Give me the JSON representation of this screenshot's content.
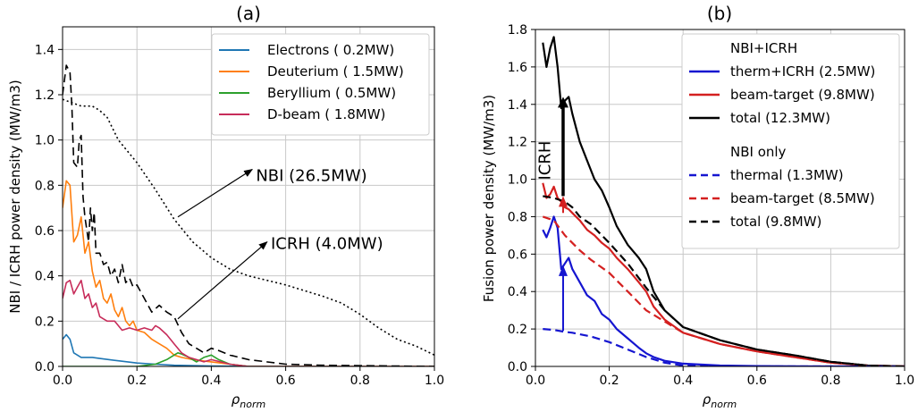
{
  "chart_data": [
    {
      "type": "line",
      "panel": "(a)",
      "xlabel": "ρnorm",
      "xlabel_base": "ρ",
      "xlabel_sub": "norm",
      "ylabel": "NBI / ICRH power density (MW/m3)",
      "xlim": [
        0,
        1.0
      ],
      "ylim": [
        0,
        1.5
      ],
      "xticks": [
        0.0,
        0.2,
        0.4,
        0.6,
        0.8,
        1.0
      ],
      "xtick_labels": [
        "0.0",
        "0.2",
        "0.4",
        "0.6",
        "0.8",
        "1.0"
      ],
      "yticks": [
        0.0,
        0.2,
        0.4,
        0.6,
        0.8,
        1.0,
        1.2,
        1.4
      ],
      "ytick_labels": [
        "0.0",
        "0.2",
        "0.4",
        "0.6",
        "0.8",
        "1.0",
        "1.2",
        "1.4"
      ],
      "grid": true,
      "legend_position": "top-right",
      "series": [
        {
          "name": "Electrons  ( 0.2MW)",
          "color": "#1f77b4",
          "dash": "solid",
          "in_legend": true,
          "x": [
            0.0,
            0.01,
            0.02,
            0.03,
            0.05,
            0.08,
            0.1,
            0.15,
            0.2,
            0.25,
            0.3,
            0.4,
            0.5,
            1.0
          ],
          "y": [
            0.12,
            0.14,
            0.12,
            0.06,
            0.04,
            0.04,
            0.035,
            0.025,
            0.015,
            0.01,
            0.005,
            0.002,
            0.0,
            0.0
          ]
        },
        {
          "name": "Deuterium  ( 1.5MW)",
          "color": "#ff7f0e",
          "dash": "solid",
          "in_legend": true,
          "x": [
            0.0,
            0.01,
            0.02,
            0.03,
            0.04,
            0.05,
            0.06,
            0.07,
            0.08,
            0.09,
            0.1,
            0.11,
            0.12,
            0.13,
            0.14,
            0.15,
            0.16,
            0.17,
            0.18,
            0.19,
            0.2,
            0.22,
            0.24,
            0.26,
            0.28,
            0.3,
            0.32,
            0.35,
            0.4,
            0.45,
            0.5,
            1.0
          ],
          "y": [
            0.7,
            0.82,
            0.8,
            0.55,
            0.58,
            0.66,
            0.5,
            0.55,
            0.42,
            0.35,
            0.38,
            0.3,
            0.28,
            0.32,
            0.25,
            0.22,
            0.26,
            0.2,
            0.18,
            0.2,
            0.16,
            0.15,
            0.12,
            0.1,
            0.08,
            0.05,
            0.04,
            0.03,
            0.02,
            0.01,
            0.0,
            0.0
          ]
        },
        {
          "name": "Beryllium  ( 0.5MW)",
          "color": "#2ca02c",
          "dash": "solid",
          "in_legend": true,
          "x": [
            0.0,
            0.2,
            0.25,
            0.28,
            0.3,
            0.31,
            0.32,
            0.34,
            0.36,
            0.38,
            0.4,
            0.42,
            0.45,
            0.5,
            1.0
          ],
          "y": [
            0.0,
            0.0,
            0.01,
            0.03,
            0.05,
            0.06,
            0.055,
            0.04,
            0.02,
            0.04,
            0.05,
            0.03,
            0.01,
            0.0,
            0.0
          ]
        },
        {
          "name": "D-beam   ( 1.8MW)",
          "color": "#c72c5a",
          "dash": "solid",
          "in_legend": true,
          "x": [
            0.0,
            0.01,
            0.02,
            0.03,
            0.04,
            0.05,
            0.06,
            0.07,
            0.08,
            0.09,
            0.1,
            0.12,
            0.14,
            0.16,
            0.18,
            0.2,
            0.22,
            0.24,
            0.25,
            0.26,
            0.28,
            0.3,
            0.32,
            0.34,
            0.36,
            0.38,
            0.4,
            0.45,
            0.5,
            1.0
          ],
          "y": [
            0.3,
            0.37,
            0.38,
            0.32,
            0.35,
            0.38,
            0.3,
            0.32,
            0.26,
            0.28,
            0.22,
            0.2,
            0.2,
            0.16,
            0.17,
            0.16,
            0.17,
            0.16,
            0.18,
            0.17,
            0.14,
            0.1,
            0.06,
            0.04,
            0.03,
            0.02,
            0.03,
            0.01,
            0.0,
            0.0
          ]
        },
        {
          "name": "NBI",
          "color": "#000000",
          "dash": "dashed",
          "in_legend": false,
          "x": [
            0.0,
            0.01,
            0.02,
            0.025,
            0.03,
            0.04,
            0.045,
            0.05,
            0.055,
            0.06,
            0.07,
            0.075,
            0.08,
            0.085,
            0.09,
            0.1,
            0.11,
            0.12,
            0.13,
            0.14,
            0.15,
            0.16,
            0.17,
            0.18,
            0.19,
            0.2,
            0.22,
            0.24,
            0.26,
            0.28,
            0.3,
            0.32,
            0.34,
            0.36,
            0.38,
            0.4,
            0.42,
            0.45,
            0.5,
            0.6,
            0.7,
            1.0
          ],
          "y": [
            1.2,
            1.33,
            1.3,
            1.15,
            0.9,
            0.88,
            1.0,
            1.02,
            0.75,
            0.66,
            0.55,
            0.7,
            0.6,
            0.68,
            0.5,
            0.5,
            0.45,
            0.46,
            0.4,
            0.43,
            0.37,
            0.45,
            0.37,
            0.39,
            0.35,
            0.36,
            0.3,
            0.24,
            0.27,
            0.24,
            0.22,
            0.15,
            0.1,
            0.08,
            0.06,
            0.08,
            0.07,
            0.05,
            0.03,
            0.01,
            0.005,
            0.0
          ]
        },
        {
          "name": "ICRH",
          "color": "#000000",
          "dash": "dotted",
          "in_legend": false,
          "x": [
            0.0,
            0.05,
            0.08,
            0.1,
            0.12,
            0.15,
            0.2,
            0.25,
            0.3,
            0.35,
            0.4,
            0.45,
            0.5,
            0.55,
            0.6,
            0.7,
            0.75,
            0.8,
            0.85,
            0.9,
            0.95,
            1.0
          ],
          "y": [
            1.18,
            1.15,
            1.15,
            1.13,
            1.1,
            1.0,
            0.9,
            0.78,
            0.65,
            0.55,
            0.48,
            0.43,
            0.4,
            0.38,
            0.36,
            0.31,
            0.28,
            0.23,
            0.17,
            0.12,
            0.09,
            0.05
          ]
        }
      ],
      "annotations": [
        {
          "text": "NBI (26.5MW)",
          "x": 0.52,
          "y": 0.82,
          "arrow_from": [
            0.31,
            0.66
          ],
          "arrow_to": [
            0.51,
            0.87
          ]
        },
        {
          "text": "ICRH (4.0MW)",
          "x": 0.56,
          "y": 0.52,
          "arrow_from": [
            0.31,
            0.21
          ],
          "arrow_to": [
            0.55,
            0.55
          ]
        }
      ]
    },
    {
      "type": "line",
      "panel": "(b)",
      "xlabel": "ρnorm",
      "xlabel_base": "ρ",
      "xlabel_sub": "norm",
      "ylabel": "Fusion power density (MW/m3)",
      "xlim": [
        0,
        1.0
      ],
      "ylim": [
        0,
        1.8
      ],
      "xticks": [
        0.0,
        0.2,
        0.4,
        0.6,
        0.8,
        1.0
      ],
      "xtick_labels": [
        "0.0",
        "0.2",
        "0.4",
        "0.6",
        "0.8",
        "1.0"
      ],
      "yticks": [
        0.0,
        0.2,
        0.4,
        0.6,
        0.8,
        1.0,
        1.2,
        1.4,
        1.6,
        1.8
      ],
      "ytick_labels": [
        "0.0",
        "0.2",
        "0.4",
        "0.6",
        "0.8",
        "1.0",
        "1.2",
        "1.4",
        "1.6",
        "1.8"
      ],
      "grid": true,
      "legend_position": "top-right",
      "legend_groups": [
        "NBI+ICRH",
        "NBI only"
      ],
      "series": [
        {
          "name": "therm+ICRH  (2.5MW)",
          "group": "NBI+ICRH",
          "color": "#1515d0",
          "dash": "solid",
          "x": [
            0.02,
            0.03,
            0.04,
            0.05,
            0.06,
            0.07,
            0.08,
            0.09,
            0.1,
            0.12,
            0.14,
            0.16,
            0.18,
            0.2,
            0.22,
            0.25,
            0.28,
            0.3,
            0.32,
            0.35,
            0.4,
            0.5,
            0.6,
            0.8,
            1.0
          ],
          "y": [
            0.73,
            0.69,
            0.74,
            0.8,
            0.74,
            0.52,
            0.55,
            0.58,
            0.52,
            0.45,
            0.38,
            0.35,
            0.28,
            0.25,
            0.2,
            0.15,
            0.1,
            0.07,
            0.05,
            0.03,
            0.015,
            0.005,
            0.002,
            0.0,
            0.0
          ]
        },
        {
          "name": "beam-target (9.8MW)",
          "group": "NBI+ICRH",
          "color": "#d42020",
          "dash": "solid",
          "x": [
            0.02,
            0.03,
            0.04,
            0.05,
            0.06,
            0.07,
            0.08,
            0.09,
            0.1,
            0.12,
            0.14,
            0.16,
            0.18,
            0.2,
            0.22,
            0.25,
            0.28,
            0.3,
            0.32,
            0.35,
            0.4,
            0.5,
            0.6,
            0.7,
            0.8,
            0.9,
            1.0
          ],
          "y": [
            0.98,
            0.9,
            0.92,
            0.96,
            0.9,
            0.88,
            0.85,
            0.84,
            0.82,
            0.78,
            0.73,
            0.7,
            0.66,
            0.63,
            0.58,
            0.52,
            0.45,
            0.4,
            0.32,
            0.25,
            0.18,
            0.12,
            0.08,
            0.05,
            0.02,
            0.005,
            0.0
          ]
        },
        {
          "name": "total (12.3MW)",
          "group": "NBI+ICRH",
          "color": "#000000",
          "dash": "solid",
          "x": [
            0.02,
            0.03,
            0.04,
            0.05,
            0.06,
            0.07,
            0.08,
            0.09,
            0.1,
            0.12,
            0.14,
            0.16,
            0.18,
            0.2,
            0.22,
            0.25,
            0.28,
            0.3,
            0.32,
            0.35,
            0.4,
            0.5,
            0.6,
            0.7,
            0.8,
            0.9,
            1.0
          ],
          "y": [
            1.73,
            1.6,
            1.7,
            1.76,
            1.6,
            1.38,
            1.42,
            1.44,
            1.35,
            1.2,
            1.1,
            1.0,
            0.94,
            0.85,
            0.75,
            0.65,
            0.58,
            0.52,
            0.4,
            0.3,
            0.21,
            0.14,
            0.09,
            0.06,
            0.025,
            0.005,
            0.0
          ]
        },
        {
          "name": "thermal  (1.3MW)",
          "group": "NBI only",
          "color": "#1515d0",
          "dash": "dashed",
          "x": [
            0.02,
            0.05,
            0.08,
            0.1,
            0.15,
            0.2,
            0.25,
            0.3,
            0.35,
            0.4,
            0.5,
            1.0
          ],
          "y": [
            0.2,
            0.195,
            0.185,
            0.18,
            0.16,
            0.13,
            0.09,
            0.05,
            0.02,
            0.005,
            0.0,
            0.0
          ]
        },
        {
          "name": "beam-target (8.5MW)",
          "group": "NBI only",
          "color": "#d42020",
          "dash": "dashed",
          "x": [
            0.02,
            0.05,
            0.08,
            0.1,
            0.12,
            0.15,
            0.2,
            0.25,
            0.3,
            0.35,
            0.4,
            0.5,
            0.6,
            0.7,
            0.8,
            0.9,
            1.0
          ],
          "y": [
            0.8,
            0.78,
            0.7,
            0.66,
            0.62,
            0.57,
            0.5,
            0.4,
            0.3,
            0.24,
            0.18,
            0.12,
            0.08,
            0.05,
            0.02,
            0.005,
            0.0
          ]
        },
        {
          "name": "total (9.8MW)",
          "group": "NBI only",
          "color": "#000000",
          "dash": "dashed",
          "x": [
            0.02,
            0.05,
            0.08,
            0.1,
            0.12,
            0.15,
            0.2,
            0.25,
            0.3,
            0.35,
            0.4,
            0.5,
            0.6,
            0.7,
            0.8,
            0.9,
            1.0
          ],
          "y": [
            0.91,
            0.9,
            0.88,
            0.85,
            0.8,
            0.76,
            0.66,
            0.55,
            0.42,
            0.3,
            0.21,
            0.14,
            0.09,
            0.06,
            0.025,
            0.005,
            0.0
          ]
        }
      ],
      "arrows": [
        {
          "color": "#000000",
          "x": 0.075,
          "y_from": 0.91,
          "y_to": 1.44
        },
        {
          "color": "#d42020",
          "x": 0.075,
          "y_from": 0.82,
          "y_to": 0.91
        },
        {
          "color": "#1515d0",
          "x": 0.075,
          "y_from": 0.19,
          "y_to": 0.54
        }
      ],
      "annotations": [
        {
          "text": "ICRH",
          "x": 0.04,
          "y": 1.1,
          "rotate": true
        }
      ]
    }
  ]
}
